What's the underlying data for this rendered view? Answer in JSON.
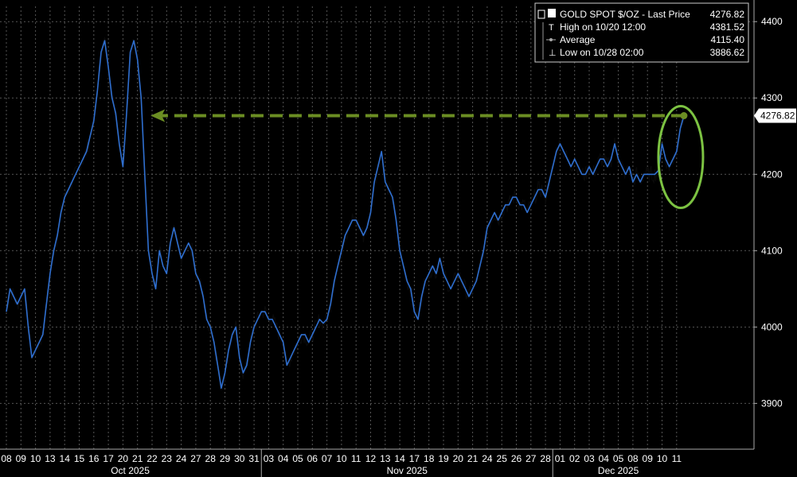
{
  "chart_data": {
    "type": "line",
    "title": "GOLD SPOT $/OZ",
    "colors": {
      "price_line": "#2f6fd0",
      "price_shadow": "#0a0a0a",
      "arrow": "#6b8e23",
      "circle": "#7cc242",
      "grid": "#555555",
      "background": "#000000",
      "text": "#ffffff"
    },
    "ylim": [
      3840,
      4420
    ],
    "y_ticks": [
      3900,
      4000,
      4100,
      4200,
      4300,
      4400
    ],
    "y_tick_labels": [
      "3900",
      "4000",
      "4100",
      "4200",
      "4300",
      "4400"
    ],
    "x_tick_labels": [
      "08",
      "09",
      "10",
      "13",
      "14",
      "15",
      "16",
      "17",
      "20",
      "21",
      "22",
      "23",
      "24",
      "27",
      "28",
      "29",
      "30",
      "31",
      "03",
      "04",
      "05",
      "06",
      "07",
      "10",
      "11",
      "12",
      "13",
      "14",
      "17",
      "18",
      "19",
      "20",
      "21",
      "24",
      "25",
      "26",
      "27",
      "28",
      "01",
      "02",
      "03",
      "04",
      "05",
      "08",
      "09",
      "10",
      "11"
    ],
    "months": [
      {
        "label": "Oct 2025",
        "start": 0,
        "end": 18
      },
      {
        "label": "Nov 2025",
        "start": 18,
        "end": 38
      },
      {
        "label": "Dec 2025",
        "start": 38,
        "end": 47
      }
    ],
    "legend": {
      "last_label": "GOLD SPOT $/OZ - Last Price",
      "last_value": "4276.82",
      "high_label": "High on 10/20 12:00",
      "high_value": "4381.52",
      "avg_label": "Average",
      "avg_value": "4115.40",
      "low_label": "Low on 10/28 02:00",
      "low_value": "3886.62"
    },
    "last_price": 4276.82,
    "last_price_label": "4276.82",
    "series": [
      {
        "values": [
          [
            0,
            4020
          ],
          [
            0.25,
            4050
          ],
          [
            0.5,
            4040
          ],
          [
            0.75,
            4030
          ],
          [
            1,
            4040
          ],
          [
            1.25,
            4050
          ],
          [
            1.5,
            4000
          ],
          [
            1.75,
            3960
          ],
          [
            2,
            3970
          ],
          [
            2.25,
            3980
          ],
          [
            2.5,
            3990
          ],
          [
            2.75,
            4030
          ],
          [
            3,
            4070
          ],
          [
            3.25,
            4100
          ],
          [
            3.5,
            4120
          ],
          [
            3.75,
            4150
          ],
          [
            4,
            4170
          ],
          [
            4.25,
            4180
          ],
          [
            4.5,
            4190
          ],
          [
            4.75,
            4200
          ],
          [
            5,
            4210
          ],
          [
            5.25,
            4220
          ],
          [
            5.5,
            4230
          ],
          [
            5.75,
            4250
          ],
          [
            6,
            4270
          ],
          [
            6.25,
            4310
          ],
          [
            6.5,
            4360
          ],
          [
            6.75,
            4375
          ],
          [
            7,
            4340
          ],
          [
            7.25,
            4300
          ],
          [
            7.5,
            4280
          ],
          [
            7.75,
            4240
          ],
          [
            8,
            4210
          ],
          [
            8.25,
            4280
          ],
          [
            8.5,
            4360
          ],
          [
            8.75,
            4375
          ],
          [
            9,
            4350
          ],
          [
            9.25,
            4300
          ],
          [
            9.5,
            4200
          ],
          [
            9.75,
            4100
          ],
          [
            10,
            4070
          ],
          [
            10.25,
            4050
          ],
          [
            10.5,
            4100
          ],
          [
            10.75,
            4080
          ],
          [
            11,
            4070
          ],
          [
            11.25,
            4110
          ],
          [
            11.5,
            4130
          ],
          [
            11.75,
            4110
          ],
          [
            12,
            4090
          ],
          [
            12.25,
            4100
          ],
          [
            12.5,
            4110
          ],
          [
            12.75,
            4100
          ],
          [
            13,
            4070
          ],
          [
            13.25,
            4060
          ],
          [
            13.5,
            4040
          ],
          [
            13.75,
            4010
          ],
          [
            14,
            4000
          ],
          [
            14.25,
            3980
          ],
          [
            14.5,
            3950
          ],
          [
            14.75,
            3920
          ],
          [
            15,
            3940
          ],
          [
            15.25,
            3970
          ],
          [
            15.5,
            3990
          ],
          [
            15.75,
            4000
          ],
          [
            16,
            3960
          ],
          [
            16.25,
            3940
          ],
          [
            16.5,
            3950
          ],
          [
            16.75,
            3980
          ],
          [
            17,
            4000
          ],
          [
            17.25,
            4010
          ],
          [
            17.5,
            4020
          ],
          [
            17.75,
            4020
          ],
          [
            18,
            4010
          ],
          [
            18.25,
            4010
          ],
          [
            18.5,
            4000
          ],
          [
            18.75,
            3990
          ],
          [
            19,
            3980
          ],
          [
            19.25,
            3950
          ],
          [
            19.5,
            3960
          ],
          [
            19.75,
            3970
          ],
          [
            20,
            3980
          ],
          [
            20.25,
            3990
          ],
          [
            20.5,
            3990
          ],
          [
            20.75,
            3980
          ],
          [
            21,
            3990
          ],
          [
            21.25,
            4000
          ],
          [
            21.5,
            4010
          ],
          [
            21.75,
            4005
          ],
          [
            22,
            4010
          ],
          [
            22.25,
            4030
          ],
          [
            22.5,
            4060
          ],
          [
            22.75,
            4080
          ],
          [
            23,
            4100
          ],
          [
            23.25,
            4120
          ],
          [
            23.5,
            4130
          ],
          [
            23.75,
            4140
          ],
          [
            24,
            4140
          ],
          [
            24.25,
            4130
          ],
          [
            24.5,
            4120
          ],
          [
            24.75,
            4130
          ],
          [
            25,
            4150
          ],
          [
            25.25,
            4190
          ],
          [
            25.5,
            4210
          ],
          [
            25.75,
            4230
          ],
          [
            26,
            4190
          ],
          [
            26.25,
            4180
          ],
          [
            26.5,
            4170
          ],
          [
            26.75,
            4140
          ],
          [
            27,
            4100
          ],
          [
            27.25,
            4080
          ],
          [
            27.5,
            4060
          ],
          [
            27.75,
            4050
          ],
          [
            28,
            4020
          ],
          [
            28.25,
            4010
          ],
          [
            28.5,
            4040
          ],
          [
            28.75,
            4060
          ],
          [
            29,
            4070
          ],
          [
            29.25,
            4080
          ],
          [
            29.5,
            4070
          ],
          [
            29.75,
            4090
          ],
          [
            30,
            4070
          ],
          [
            30.25,
            4060
          ],
          [
            30.5,
            4050
          ],
          [
            30.75,
            4060
          ],
          [
            31,
            4070
          ],
          [
            31.25,
            4060
          ],
          [
            31.5,
            4050
          ],
          [
            31.75,
            4040
          ],
          [
            32,
            4050
          ],
          [
            32.25,
            4060
          ],
          [
            32.5,
            4080
          ],
          [
            32.75,
            4100
          ],
          [
            33,
            4130
          ],
          [
            33.25,
            4140
          ],
          [
            33.5,
            4150
          ],
          [
            33.75,
            4140
          ],
          [
            34,
            4150
          ],
          [
            34.25,
            4160
          ],
          [
            34.5,
            4160
          ],
          [
            34.75,
            4170
          ],
          [
            35,
            4170
          ],
          [
            35.25,
            4160
          ],
          [
            35.5,
            4160
          ],
          [
            35.75,
            4150
          ],
          [
            36,
            4160
          ],
          [
            36.25,
            4170
          ],
          [
            36.5,
            4180
          ],
          [
            36.75,
            4180
          ],
          [
            37,
            4170
          ],
          [
            37.25,
            4190
          ],
          [
            37.5,
            4210
          ],
          [
            37.75,
            4230
          ],
          [
            38,
            4240
          ],
          [
            38.25,
            4230
          ],
          [
            38.5,
            4220
          ],
          [
            38.75,
            4210
          ],
          [
            39,
            4220
          ],
          [
            39.25,
            4210
          ],
          [
            39.5,
            4200
          ],
          [
            39.75,
            4200
          ],
          [
            40,
            4210
          ],
          [
            40.25,
            4200
          ],
          [
            40.5,
            4210
          ],
          [
            40.75,
            4220
          ],
          [
            41,
            4220
          ],
          [
            41.25,
            4210
          ],
          [
            41.5,
            4220
          ],
          [
            41.75,
            4240
          ],
          [
            42,
            4220
          ],
          [
            42.25,
            4210
          ],
          [
            42.5,
            4200
          ],
          [
            42.75,
            4210
          ],
          [
            43,
            4190
          ],
          [
            43.25,
            4200
          ],
          [
            43.5,
            4190
          ],
          [
            43.75,
            4200
          ],
          [
            44,
            4200
          ],
          [
            44.25,
            4200
          ],
          [
            44.5,
            4200
          ],
          [
            44.75,
            4205
          ],
          [
            45,
            4240
          ],
          [
            45.25,
            4220
          ],
          [
            45.5,
            4210
          ],
          [
            45.75,
            4220
          ],
          [
            46,
            4230
          ],
          [
            46.25,
            4260
          ],
          [
            46.5,
            4276.82
          ]
        ]
      }
    ]
  }
}
